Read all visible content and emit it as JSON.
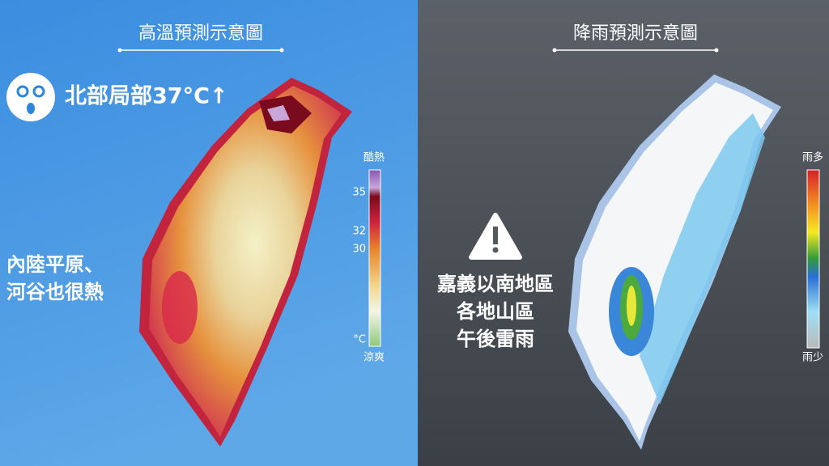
{
  "left": {
    "title": "高溫預測示意圖",
    "headline": "北部局部37°C↑",
    "note": [
      "內陸平原、",
      "河谷也很熱"
    ],
    "legend": {
      "top": "酷熱",
      "ticks": [
        "35",
        "32",
        "30"
      ],
      "unit": "°C",
      "bottom": "涼爽"
    }
  },
  "right": {
    "title": "降雨預測示意圖",
    "note": [
      "嘉義以南地區",
      "各地山區",
      "午後雷雨"
    ],
    "legend": {
      "top": "雨多",
      "bottom": "雨少"
    }
  }
}
